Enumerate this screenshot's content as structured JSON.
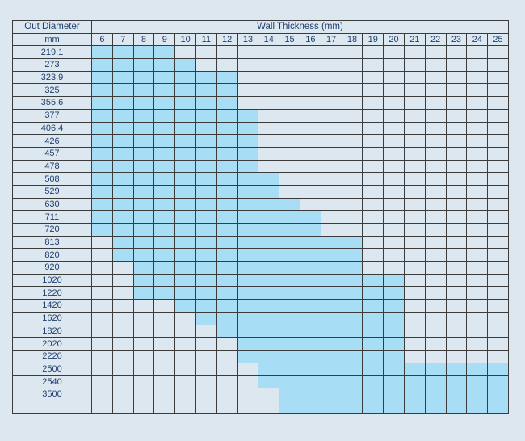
{
  "table": {
    "od_header": "Out Diameter",
    "od_unit": "mm",
    "wt_header": "Wall Thickness (mm)",
    "thicknesses": [
      "6",
      "7",
      "8",
      "9",
      "10",
      "11",
      "12",
      "13",
      "14",
      "15",
      "16",
      "17",
      "18",
      "19",
      "20",
      "21",
      "22",
      "23",
      "24",
      "25"
    ],
    "diameters": [
      "219.1",
      "273",
      "323.9",
      "325",
      "355.6",
      "377",
      "406.4",
      "426",
      "457",
      "478",
      "508",
      "529",
      "630",
      "711",
      "720",
      "813",
      "820",
      "920",
      "1020",
      "1220",
      "1420",
      "1620",
      "1820",
      "2020",
      "2220",
      "2500",
      "2540",
      "3500",
      ""
    ],
    "ranges": [
      [
        6,
        9
      ],
      [
        6,
        10
      ],
      [
        6,
        12
      ],
      [
        6,
        12
      ],
      [
        6,
        12
      ],
      [
        6,
        13
      ],
      [
        6,
        13
      ],
      [
        6,
        13
      ],
      [
        6,
        13
      ],
      [
        6,
        13
      ],
      [
        6,
        14
      ],
      [
        6,
        14
      ],
      [
        6,
        15
      ],
      [
        6,
        16
      ],
      [
        6,
        16
      ],
      [
        7,
        18
      ],
      [
        7,
        18
      ],
      [
        8,
        18
      ],
      [
        8,
        20
      ],
      [
        8,
        20
      ],
      [
        10,
        20
      ],
      [
        11,
        20
      ],
      [
        12,
        20
      ],
      [
        13,
        20
      ],
      [
        13,
        20
      ],
      [
        14,
        25
      ],
      [
        14,
        25
      ],
      [
        15,
        25
      ],
      [
        15,
        25
      ]
    ],
    "colors": {
      "available": "#a8ddf6",
      "unavailable": "#dde7f0",
      "text": "#1f3f6e",
      "grid": "#3b3b3b"
    }
  }
}
